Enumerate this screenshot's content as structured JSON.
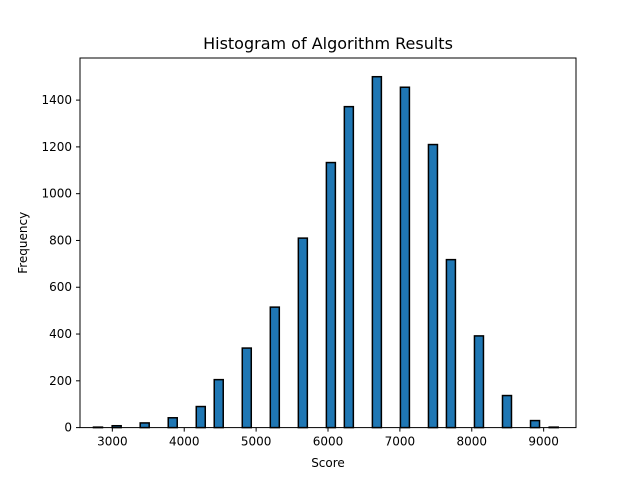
{
  "chart_data": {
    "type": "bar",
    "title": "Histogram of Algorithm Results",
    "xlabel": "Score",
    "ylabel": "Frequency",
    "xlim": [
      2550,
      9450
    ],
    "ylim": [
      0,
      1580
    ],
    "bar_color": "#1f77b4",
    "edge_color": "#000000",
    "grid": false,
    "xticks": [
      3000,
      4000,
      5000,
      6000,
      7000,
      8000,
      9000
    ],
    "yticks": [
      0,
      200,
      400,
      600,
      800,
      1000,
      1200,
      1400
    ],
    "x": [
      2800,
      3060,
      3450,
      3840,
      4230,
      4480,
      4870,
      5260,
      5650,
      6040,
      6290,
      6680,
      7070,
      7460,
      7710,
      8100,
      8490,
      8880,
      9140
    ],
    "values": [
      2,
      8,
      20,
      42,
      90,
      205,
      340,
      515,
      810,
      1133,
      1372,
      1500,
      1455,
      1210,
      718,
      392,
      137,
      30,
      2
    ]
  }
}
